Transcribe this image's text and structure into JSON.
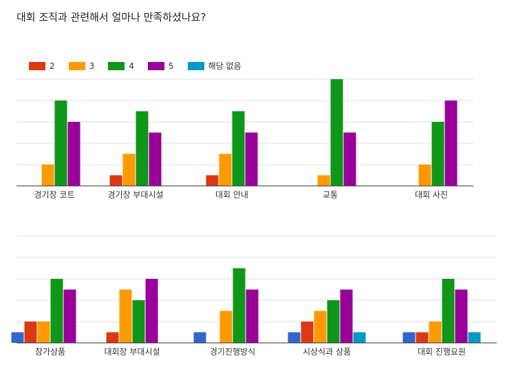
{
  "title": "대회 조직과 관련해서 얼마나 만족하셨나요?",
  "colors": {
    "1": "#3366cc",
    "2": "#dc3912",
    "3": "#ff9900",
    "4": "#109618",
    "5": "#990099",
    "na": "#0099c6"
  },
  "legend": [
    {
      "label": "2",
      "key": "2"
    },
    {
      "label": "3",
      "key": "3"
    },
    {
      "label": "4",
      "key": "4"
    },
    {
      "label": "5",
      "key": "5"
    },
    {
      "label": "해당 없음",
      "key": "na"
    }
  ],
  "chart_data": [
    {
      "type": "bar",
      "categories": [
        "경기장 코트",
        "경기장 부대시설",
        "대회 안내",
        "교통",
        "대회 사진"
      ],
      "series": [
        {
          "name": "2",
          "key": "2",
          "values": [
            0,
            1,
            1,
            0,
            0
          ]
        },
        {
          "name": "3",
          "key": "3",
          "values": [
            2,
            3,
            3,
            1,
            2
          ]
        },
        {
          "name": "4",
          "key": "4",
          "values": [
            8,
            7,
            7,
            10,
            6
          ]
        },
        {
          "name": "5",
          "key": "5",
          "values": [
            6,
            5,
            5,
            5,
            8
          ]
        }
      ],
      "ylim": [
        0,
        10
      ],
      "grid": true
    },
    {
      "type": "bar",
      "categories": [
        "참가상품",
        "대회장 부대시설",
        "경기진행방식",
        "시상식과 상품",
        "대회 진행요원"
      ],
      "series": [
        {
          "name": "",
          "key": "1",
          "values": [
            1,
            0,
            1,
            1,
            1
          ]
        },
        {
          "name": "2",
          "key": "2",
          "values": [
            2,
            1,
            0,
            2,
            1
          ]
        },
        {
          "name": "3",
          "key": "3",
          "values": [
            2,
            5,
            3,
            3,
            2
          ]
        },
        {
          "name": "4",
          "key": "4",
          "values": [
            6,
            4,
            7,
            4,
            6
          ]
        },
        {
          "name": "5",
          "key": "5",
          "values": [
            5,
            6,
            5,
            5,
            5
          ]
        },
        {
          "name": "해당 없음",
          "key": "na",
          "values": [
            0,
            0,
            0,
            1,
            1
          ]
        }
      ],
      "ylim": [
        0,
        10
      ],
      "grid": true
    }
  ]
}
